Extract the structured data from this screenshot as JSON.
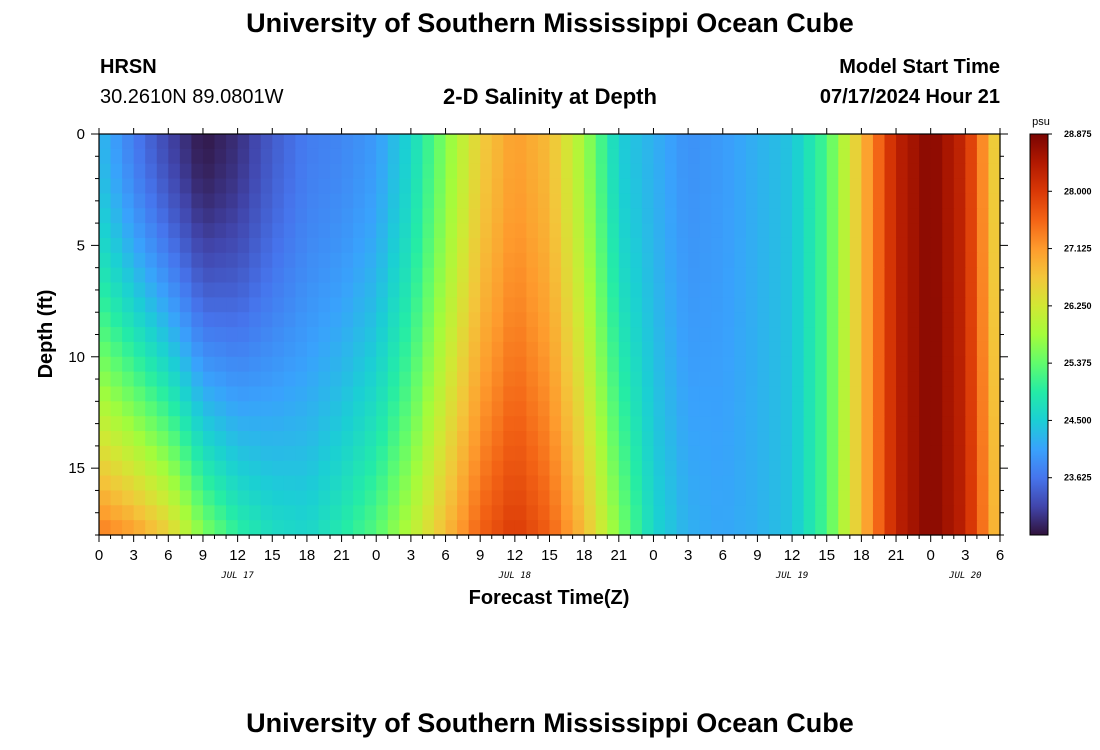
{
  "header": {
    "title": "University of Southern Mississippi Ocean Cube",
    "station": "HRSN",
    "coords": "30.2610N  89.0801W",
    "subtitle": "2-D Salinity at Depth",
    "model_start_label": "Model Start Time",
    "model_start_value": "07/17/2024 Hour 21"
  },
  "footer": {
    "title": "University of Southern Mississippi Ocean Cube"
  },
  "colors": {
    "scale": [
      "#30123b",
      "#4145ab",
      "#4675ed",
      "#39a2fc",
      "#1bcfd4",
      "#24eca6",
      "#61fc6c",
      "#a4fc3b",
      "#d1e834",
      "#f3c63a",
      "#fe9b2d",
      "#f36315",
      "#d93806",
      "#b11901",
      "#7a0402"
    ]
  },
  "chart_data": {
    "type": "heatmap",
    "title": "2-D Salinity at Depth",
    "xlabel": "Forecast Time(Z)",
    "ylabel": "Depth (ft)",
    "x_start_hour": 0,
    "x_end_hour": 78,
    "x_tick_labels": [
      "0",
      "3",
      "6",
      "9",
      "12",
      "15",
      "18",
      "21",
      "0",
      "3",
      "6",
      "9",
      "12",
      "15",
      "18",
      "21",
      "0",
      "3",
      "6",
      "9",
      "12",
      "15",
      "18",
      "21",
      "0",
      "3",
      "6"
    ],
    "date_labels": [
      {
        "text": "JUL 17",
        "hour": 12
      },
      {
        "text": "JUL 18",
        "hour": 36
      },
      {
        "text": "JUL 19",
        "hour": 60
      },
      {
        "text": "JUL 20",
        "hour": 75
      }
    ],
    "ylim": [
      0,
      18
    ],
    "y_ticks": [
      0,
      5,
      10,
      15
    ],
    "colorbar": {
      "unit": "psu",
      "min": 22.75,
      "max": 28.875,
      "tick_labels": [
        "28.875",
        "28.000",
        "27.125",
        "26.250",
        "25.375",
        "24.500",
        "23.625"
      ]
    },
    "surface_salinity_by_hour": [
      [
        0,
        24.3
      ],
      [
        3,
        23.7
      ],
      [
        6,
        23.2
      ],
      [
        9,
        22.8
      ],
      [
        12,
        23.0
      ],
      [
        15,
        23.4
      ],
      [
        18,
        23.7
      ],
      [
        21,
        23.8
      ],
      [
        24,
        24.0
      ],
      [
        27,
        24.6
      ],
      [
        30,
        25.6
      ],
      [
        33,
        26.6
      ],
      [
        36,
        27.1
      ],
      [
        39,
        26.8
      ],
      [
        42,
        25.8
      ],
      [
        45,
        24.5
      ],
      [
        48,
        24.2
      ],
      [
        51,
        23.9
      ],
      [
        54,
        24.0
      ],
      [
        57,
        24.2
      ],
      [
        60,
        24.4
      ],
      [
        63,
        25.2
      ],
      [
        66,
        26.8
      ],
      [
        69,
        28.3
      ],
      [
        72,
        28.8
      ],
      [
        75,
        28.2
      ],
      [
        78,
        26.3
      ]
    ],
    "bottom_salinity_by_hour": [
      [
        0,
        27.4
      ],
      [
        3,
        27.1
      ],
      [
        6,
        26.6
      ],
      [
        9,
        25.6
      ],
      [
        12,
        25.0
      ],
      [
        15,
        24.7
      ],
      [
        18,
        24.6
      ],
      [
        21,
        24.9
      ],
      [
        24,
        25.3
      ],
      [
        27,
        26.0
      ],
      [
        30,
        26.8
      ],
      [
        33,
        27.6
      ],
      [
        36,
        28.0
      ],
      [
        39,
        27.6
      ],
      [
        42,
        26.8
      ],
      [
        45,
        25.6
      ],
      [
        48,
        24.6
      ],
      [
        51,
        24.2
      ],
      [
        54,
        24.1
      ],
      [
        57,
        24.2
      ],
      [
        60,
        24.4
      ],
      [
        63,
        25.2
      ],
      [
        66,
        26.8
      ],
      [
        69,
        28.3
      ],
      [
        72,
        28.8
      ],
      [
        75,
        28.3
      ],
      [
        78,
        26.6
      ]
    ]
  }
}
